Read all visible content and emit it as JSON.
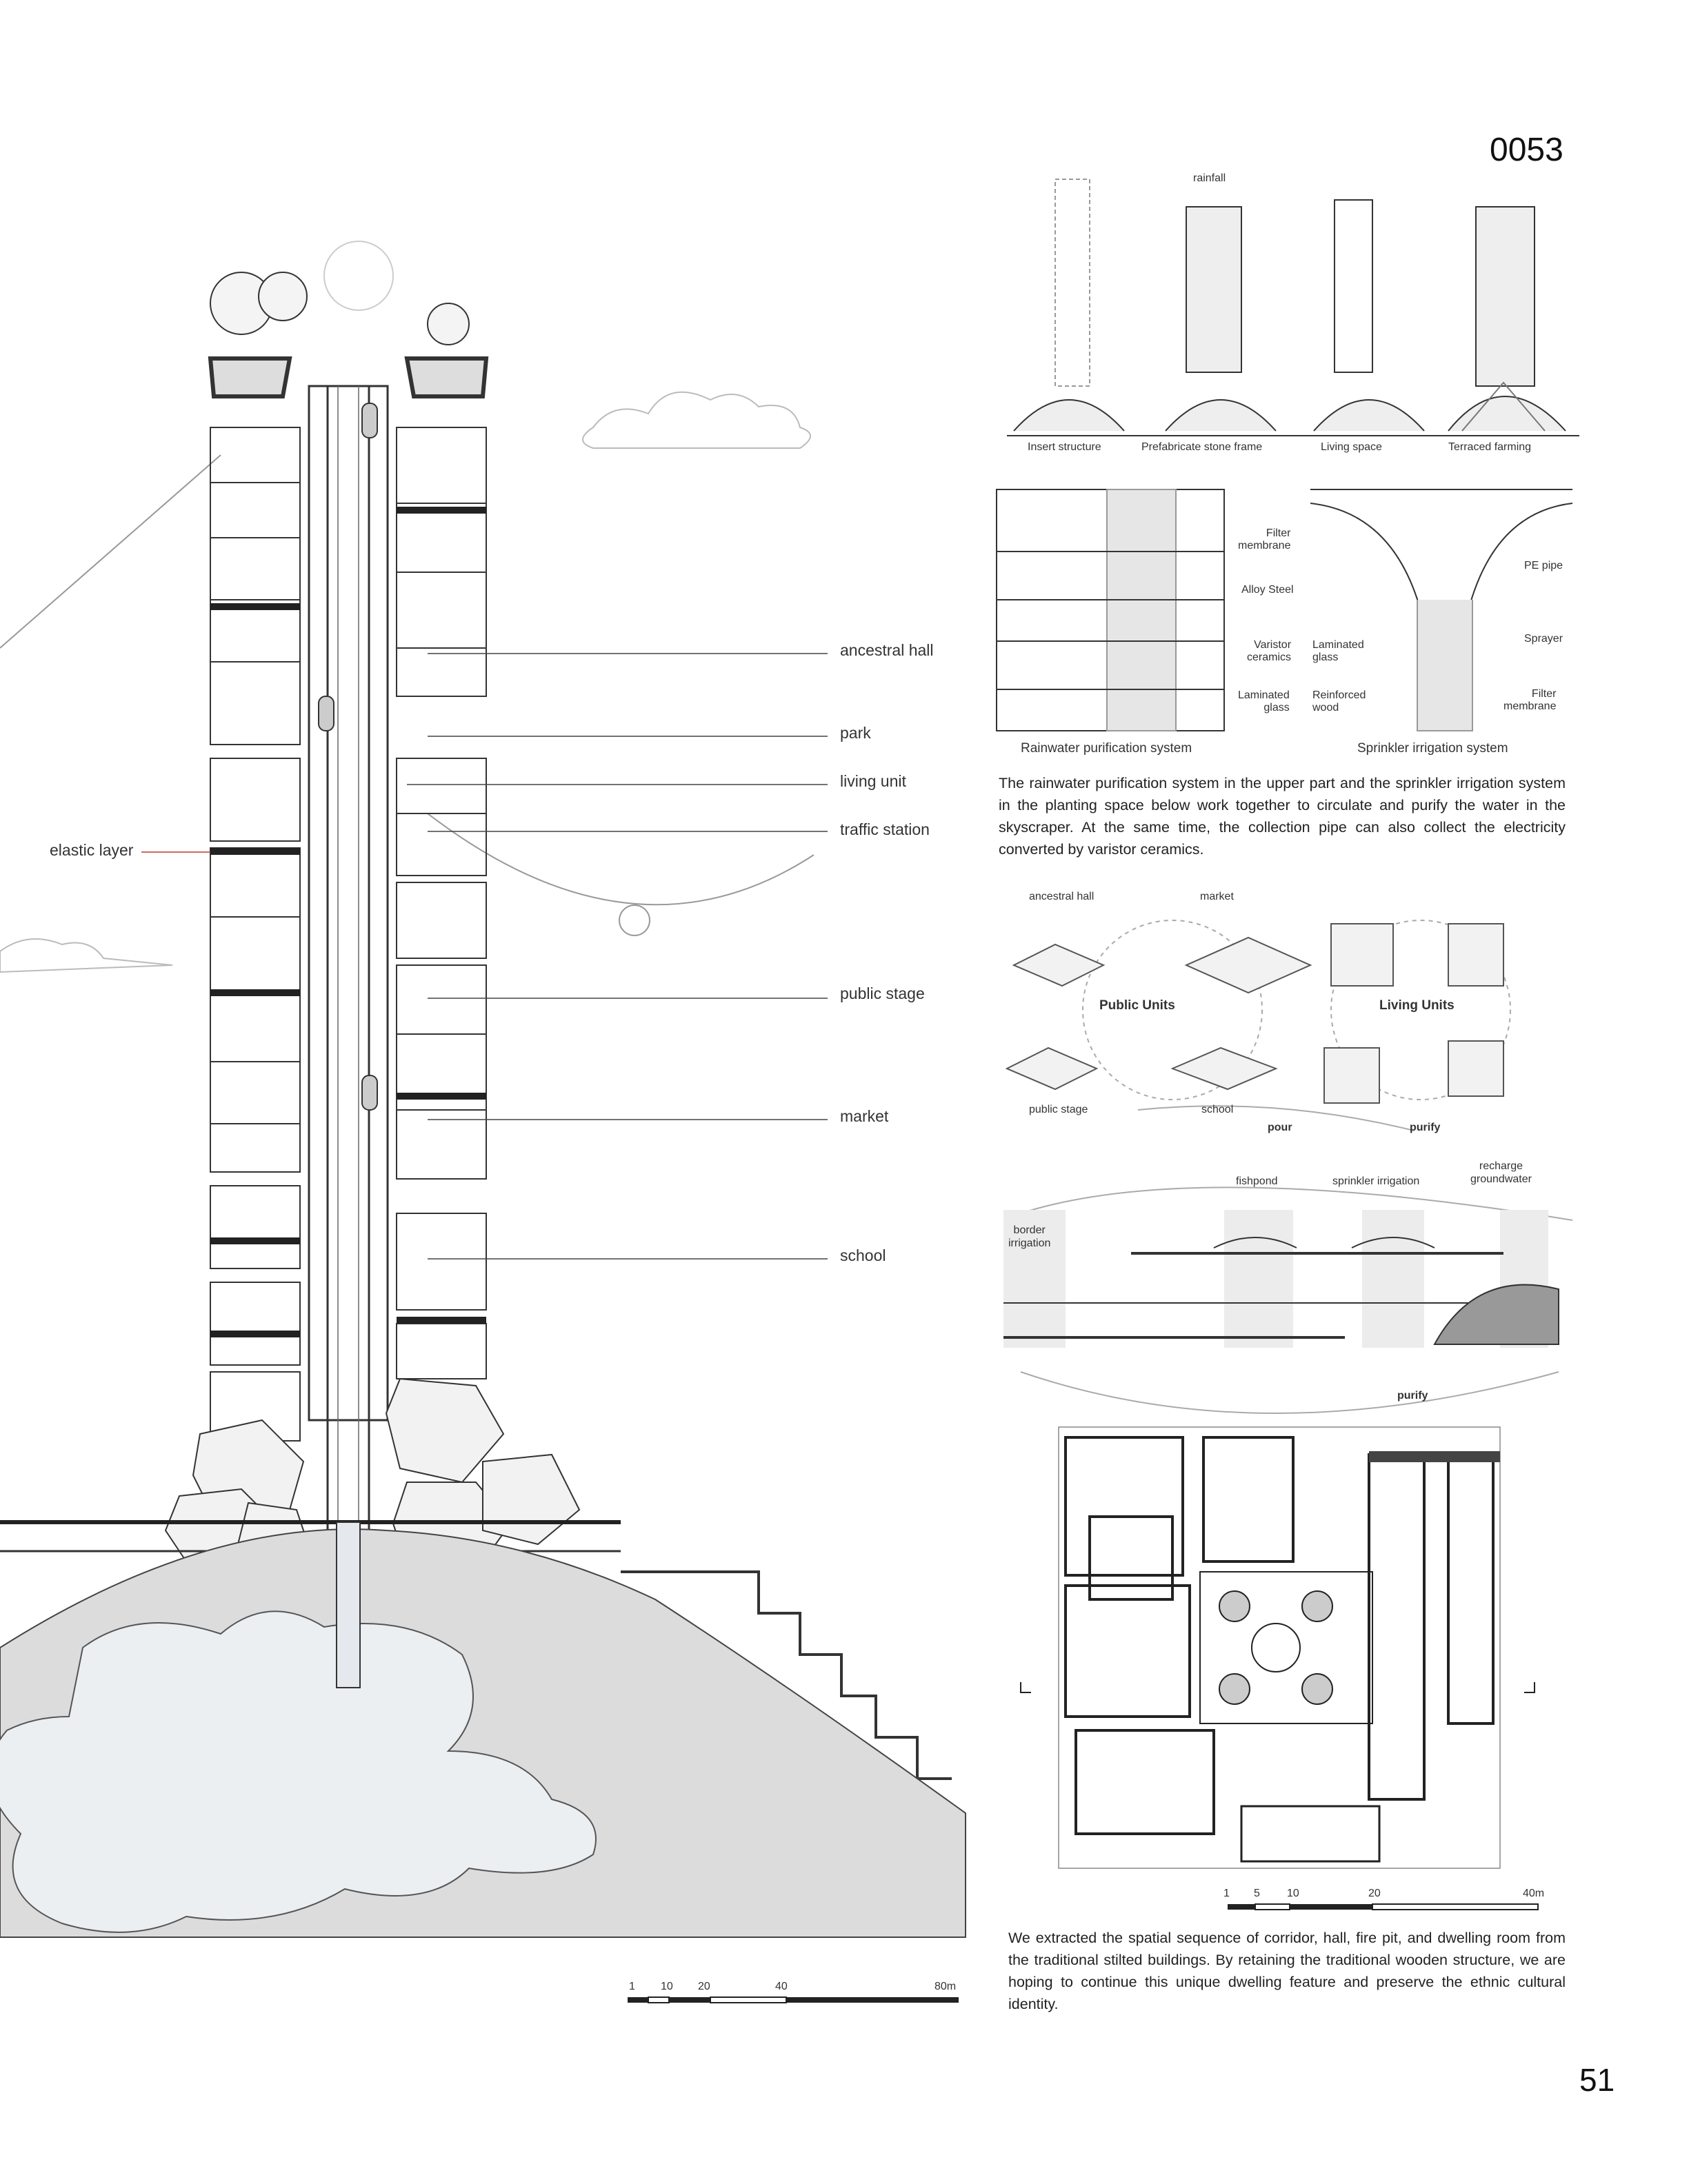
{
  "page": {
    "project_number": "0053",
    "page_number": "51"
  },
  "tower_section": {
    "labels": [
      "ancestral hall",
      "park",
      "living unit",
      "traffic station",
      "public stage",
      "market",
      "school"
    ],
    "left_label": "elastic layer",
    "scale_bar": {
      "ticks": [
        "1",
        "10",
        "20",
        "40"
      ],
      "end": "80m"
    }
  },
  "evolution": {
    "top_label": "rainfall",
    "stages": [
      "Insert structure",
      "Prefabricate stone frame",
      "Living space",
      "Terraced farming"
    ]
  },
  "systems": {
    "rainwater": {
      "caption": "Rainwater purification system",
      "labels": [
        "Filter\nmembrane",
        "Alloy Steel",
        "Varistor\nceramics",
        "Laminated\nglass"
      ]
    },
    "sprinkler": {
      "caption": "Sprinkler irrigation system",
      "labels": [
        "PE pipe",
        "Sprayer",
        "Laminated\nglass",
        "Reinforced\nwood",
        "Filter\nmembrane"
      ]
    },
    "description": "The rainwater purification system in the upper part and the sprinkler irrigation system in the planting space below work together to circulate and purify the water in the skyscraper. At the same time, the collection pipe can also collect the electricity converted by varistor ceramics."
  },
  "units": {
    "public_title": "Public Units",
    "living_title": "Living Units",
    "public_items": [
      "ancestral hall",
      "market",
      "public stage",
      "school"
    ]
  },
  "water_cycle": {
    "labels": {
      "pour": "pour",
      "purify_top": "purify",
      "recharge": "recharge\ngroundwater",
      "fishpond": "fishpond",
      "sprinkler": "sprinkler irrigation",
      "border": "border\nirrigation",
      "purify_bottom": "purify"
    }
  },
  "plan": {
    "scale_bar": {
      "ticks": [
        "1",
        "5",
        "10",
        "20"
      ],
      "end": "40m"
    },
    "description": "We extracted the spatial sequence of corridor, hall, fire pit, and dwelling room from the traditional stilted buildings. By retaining the traditional wooden structure, we are hoping to continue this unique dwelling feature and preserve the ethnic cultural identity."
  },
  "colors": {
    "ink": "#222222",
    "hill": "#d9d9d9",
    "water": "#e9eef2",
    "accent": "#c0392b"
  }
}
